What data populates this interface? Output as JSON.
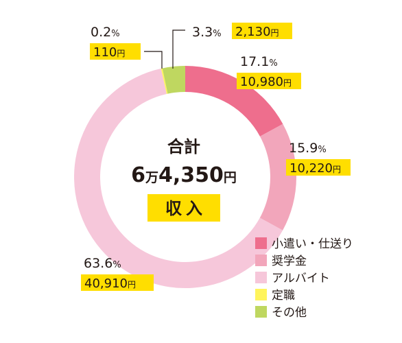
{
  "chart_data": {
    "type": "pie",
    "donut": true,
    "center": {
      "title": "合計",
      "total_number": "6",
      "total_man": "万",
      "total_rest": "4,350",
      "total_unit": "円",
      "badge": "収入"
    },
    "slices": [
      {
        "label": "小遣い・仕送り",
        "percent": 17.1,
        "percent_text": "17.1",
        "amount_text": "10,980",
        "color": "#ee6e8d"
      },
      {
        "label": "奨学金",
        "percent": 15.9,
        "percent_text": "15.9",
        "amount_text": "10,220",
        "color": "#f2a6bb"
      },
      {
        "label": "アルバイト",
        "percent": 63.6,
        "percent_text": "63.6",
        "amount_text": "40,910",
        "color": "#f6c7da"
      },
      {
        "label": "定職",
        "percent": 0.2,
        "percent_text": "0.2",
        "amount_text": "110",
        "color": "#fff45c"
      },
      {
        "label": "その他",
        "percent": 3.3,
        "percent_text": "3.3",
        "amount_text": "2,130",
        "color": "#bfd760"
      }
    ],
    "percent_sign": "%",
    "amount_unit": "円",
    "legend_position": "bottom-right"
  }
}
